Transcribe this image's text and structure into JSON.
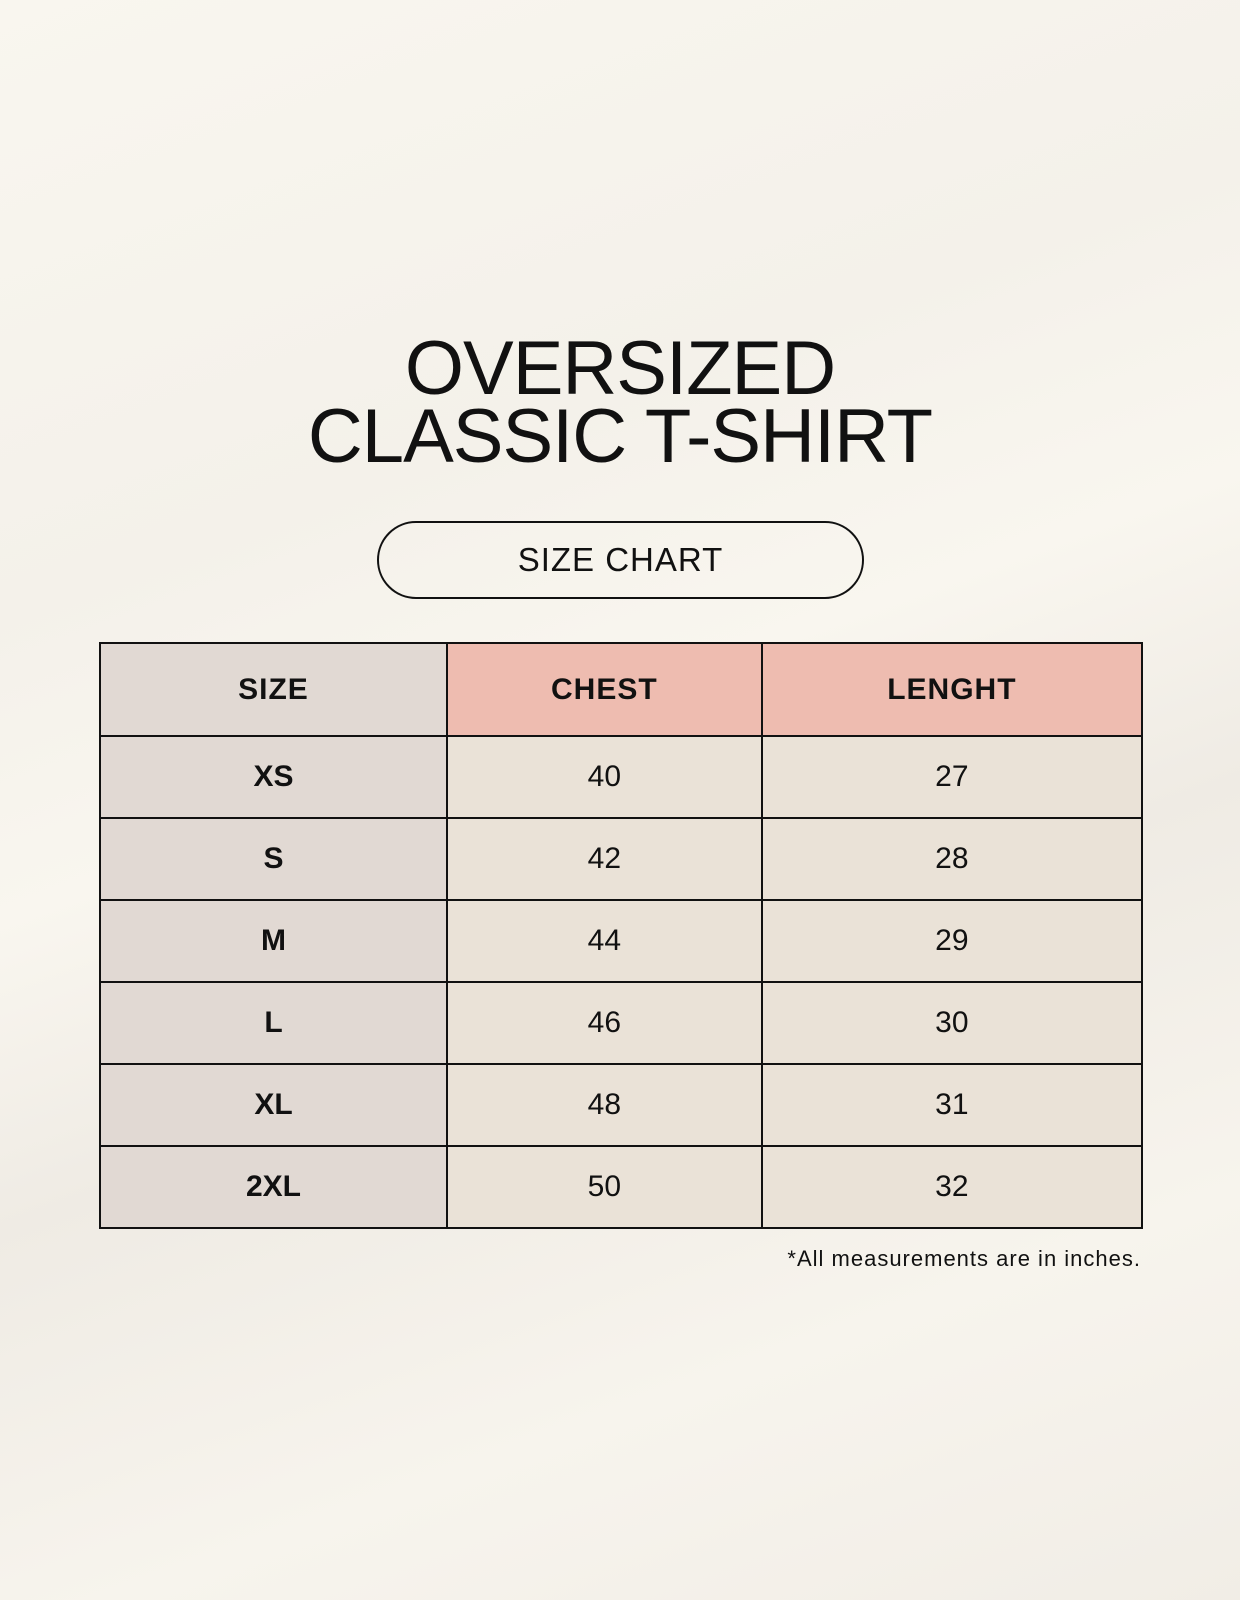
{
  "title_line1": "OVERSIZED",
  "title_line2": "CLASSIC T-SHIRT",
  "badge": "SIZE CHART",
  "table": {
    "headers": [
      "SIZE",
      "CHEST",
      "LENGHT"
    ],
    "rows": [
      [
        "XS",
        "40",
        "27"
      ],
      [
        "S",
        "42",
        "28"
      ],
      [
        "M",
        "44",
        "29"
      ],
      [
        "L",
        "46",
        "30"
      ],
      [
        "XL",
        "48",
        "31"
      ],
      [
        "2XL",
        "50",
        "32"
      ]
    ]
  },
  "footnote": "*All measurements are in inches.",
  "colors": {
    "size_column": "#e1d9d3",
    "header_accent": "#eebcb0",
    "value_cells": "#eae2d7"
  }
}
